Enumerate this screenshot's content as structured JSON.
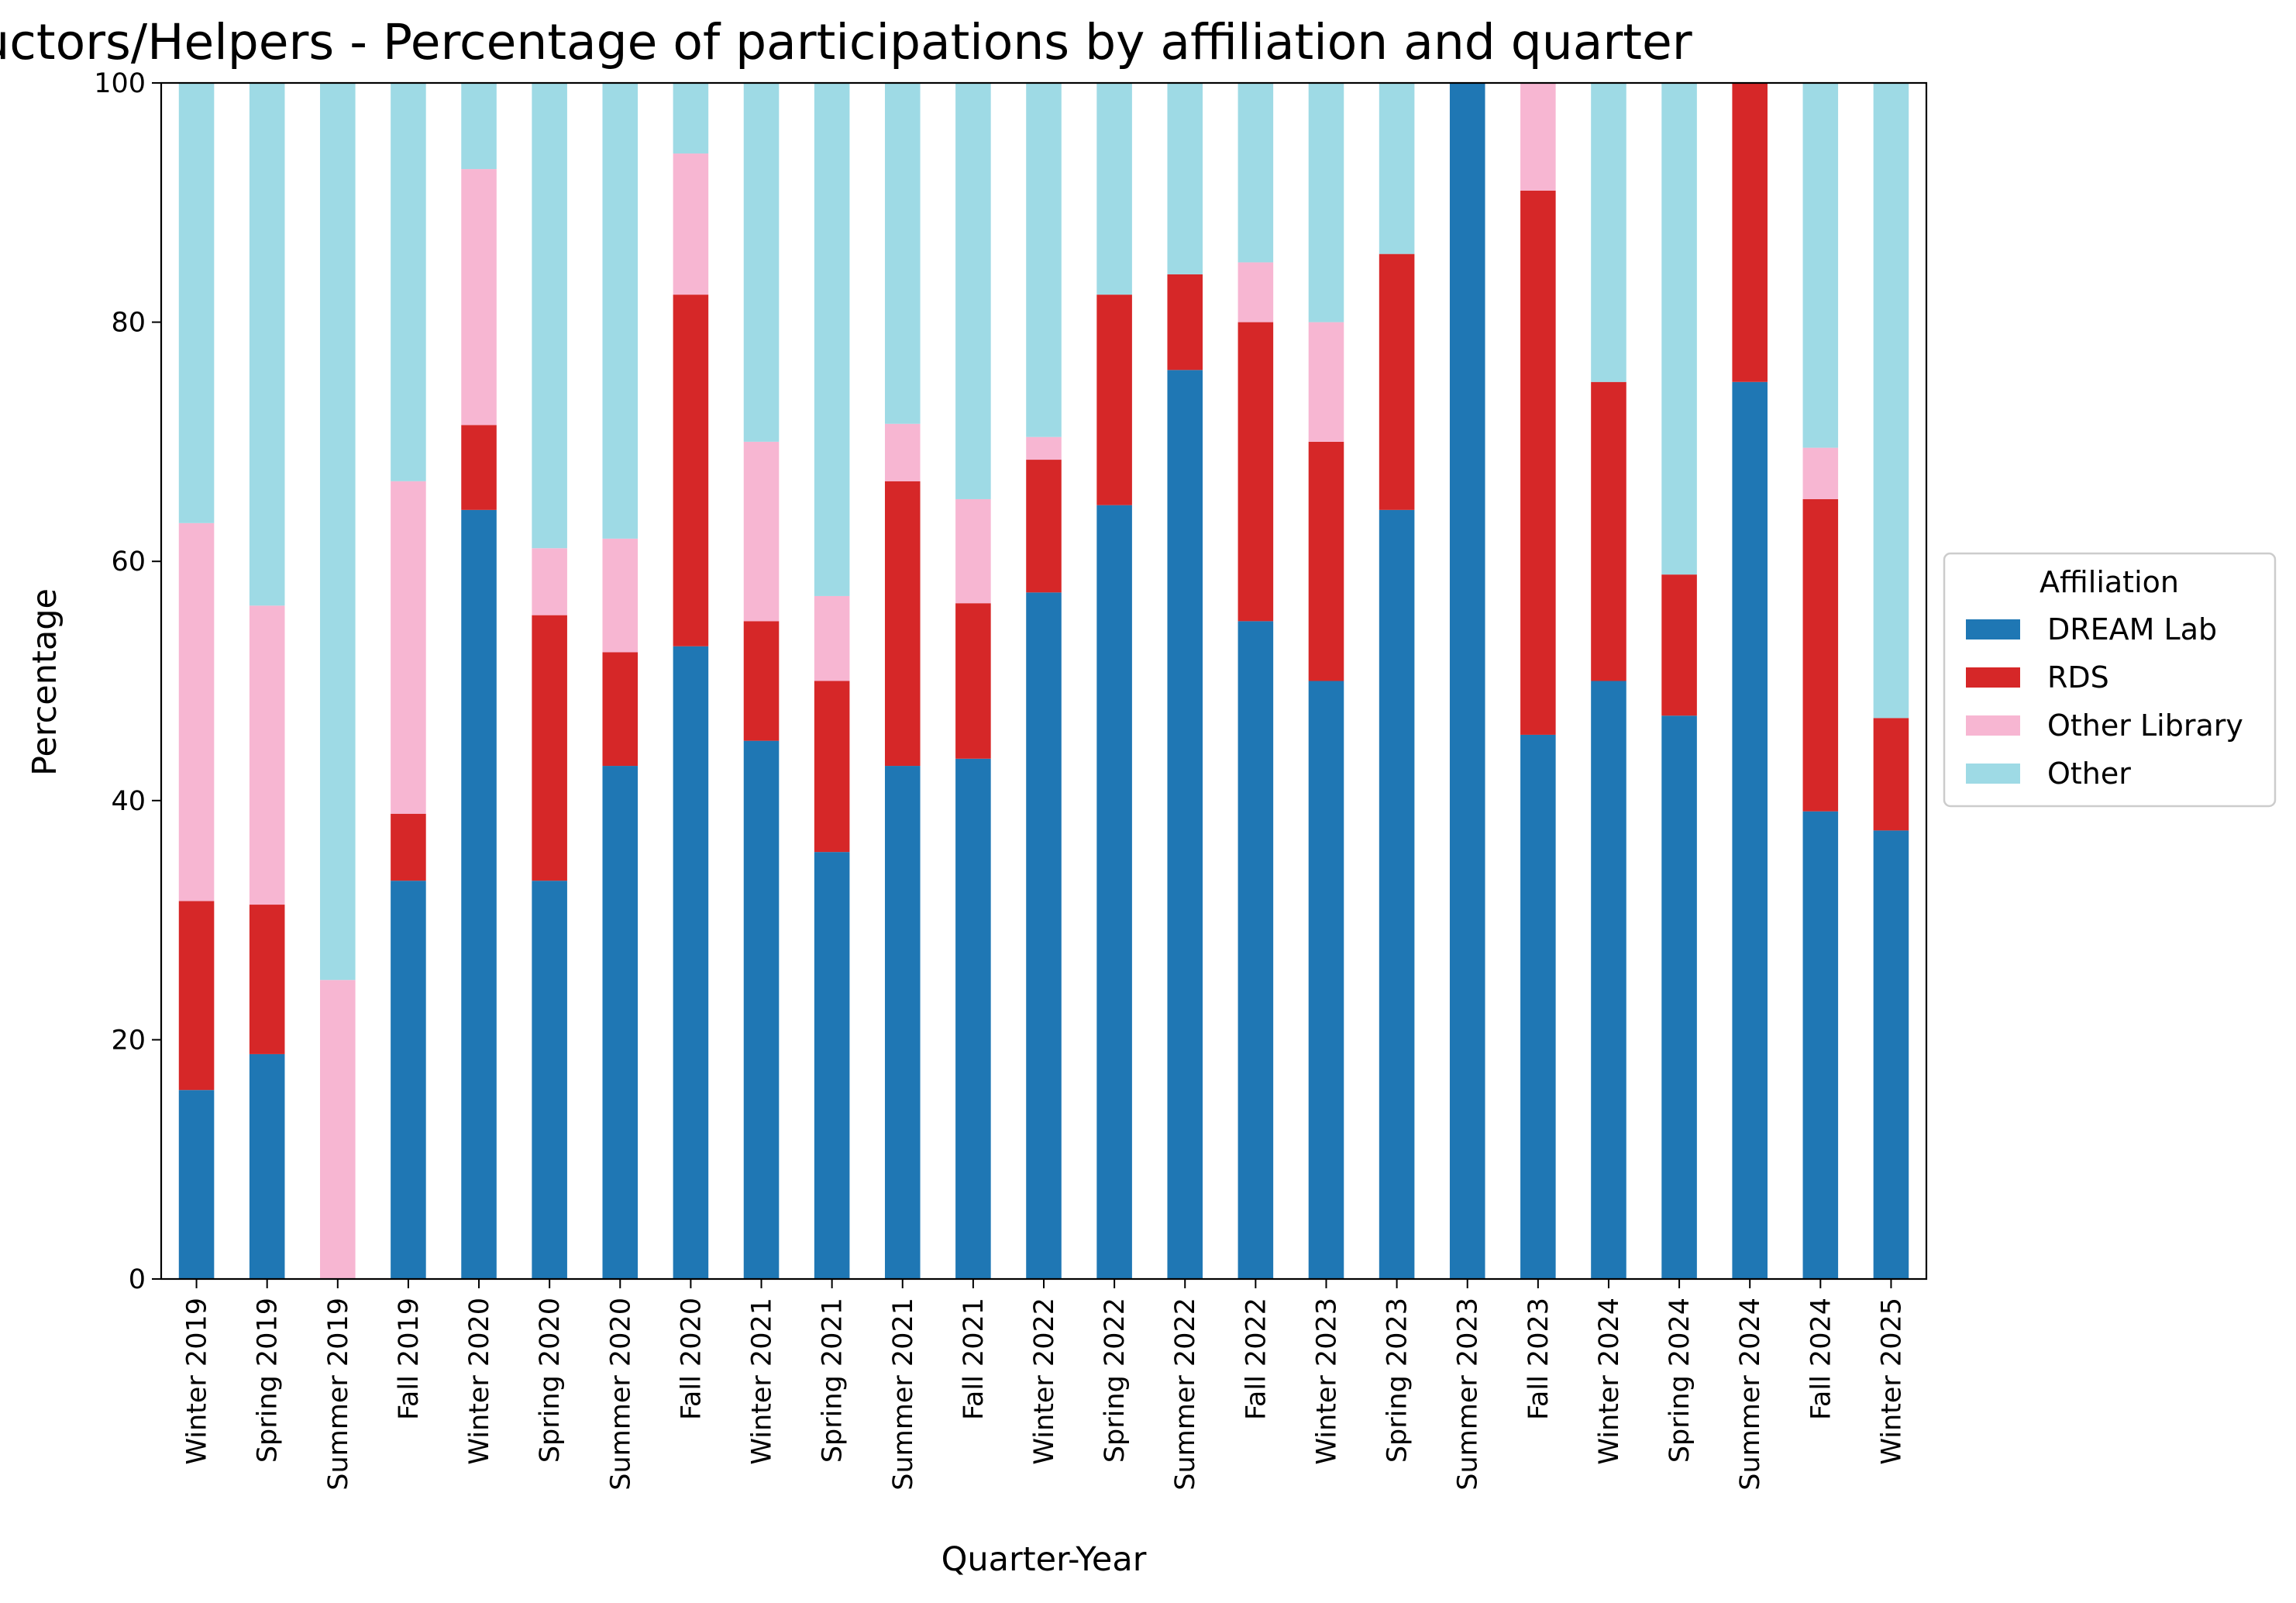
{
  "chart_data": {
    "type": "bar",
    "stacked": true,
    "title": "Instructors/Helpers - Percentage of participations by affiliation and quarter",
    "xlabel": "Quarter-Year",
    "ylabel": "Percentage",
    "ylim": [
      0,
      100
    ],
    "yticks": [
      "0",
      "20",
      "40",
      "60",
      "80",
      "100"
    ],
    "grid": false,
    "legend": {
      "title": "Affiliation",
      "placement": "right"
    },
    "categories": [
      "Winter 2019",
      "Spring 2019",
      "Summer 2019",
      "Fall 2019",
      "Winter 2020",
      "Spring 2020",
      "Summer 2020",
      "Fall 2020",
      "Winter 2021",
      "Spring 2021",
      "Summer 2021",
      "Fall 2021",
      "Winter 2022",
      "Spring 2022",
      "Summer 2022",
      "Fall 2022",
      "Winter 2023",
      "Spring 2023",
      "Summer 2023",
      "Fall 2023",
      "Winter 2024",
      "Spring 2024",
      "Summer 2024",
      "Fall 2024",
      "Winter 2025"
    ],
    "series": [
      {
        "name": "DREAM Lab",
        "color": "#1f77b4",
        "values": [
          15.8,
          18.8,
          0,
          33.3,
          64.3,
          33.3,
          42.9,
          52.9,
          45.0,
          35.7,
          42.9,
          43.5,
          57.4,
          64.7,
          76.0,
          55.0,
          50.0,
          64.3,
          100,
          45.5,
          50.0,
          47.1,
          75.0,
          39.1,
          37.5
        ]
      },
      {
        "name": "RDS",
        "color": "#d62728",
        "values": [
          15.8,
          12.5,
          0,
          5.6,
          7.1,
          22.2,
          9.5,
          29.4,
          10.0,
          14.3,
          23.8,
          13.0,
          11.1,
          17.6,
          8.0,
          25.0,
          20.0,
          21.4,
          0,
          45.5,
          25.0,
          11.8,
          25.0,
          26.1,
          9.4
        ]
      },
      {
        "name": "Other Library",
        "color": "#f7b6d2",
        "values": [
          31.6,
          25.0,
          25.0,
          27.8,
          21.4,
          5.6,
          9.5,
          11.8,
          15.0,
          7.1,
          4.8,
          8.7,
          1.9,
          0,
          0,
          5.0,
          10.0,
          0,
          0,
          9.0,
          0,
          0,
          0,
          4.3,
          0
        ]
      },
      {
        "name": "Other",
        "color": "#9edae5",
        "values": [
          36.8,
          43.7,
          75.0,
          33.3,
          7.2,
          38.9,
          38.1,
          5.9,
          30.0,
          42.9,
          28.5,
          34.8,
          29.6,
          17.7,
          16.0,
          15.0,
          20.0,
          14.3,
          0,
          0,
          25.0,
          41.1,
          0,
          30.5,
          53.1
        ]
      }
    ]
  }
}
